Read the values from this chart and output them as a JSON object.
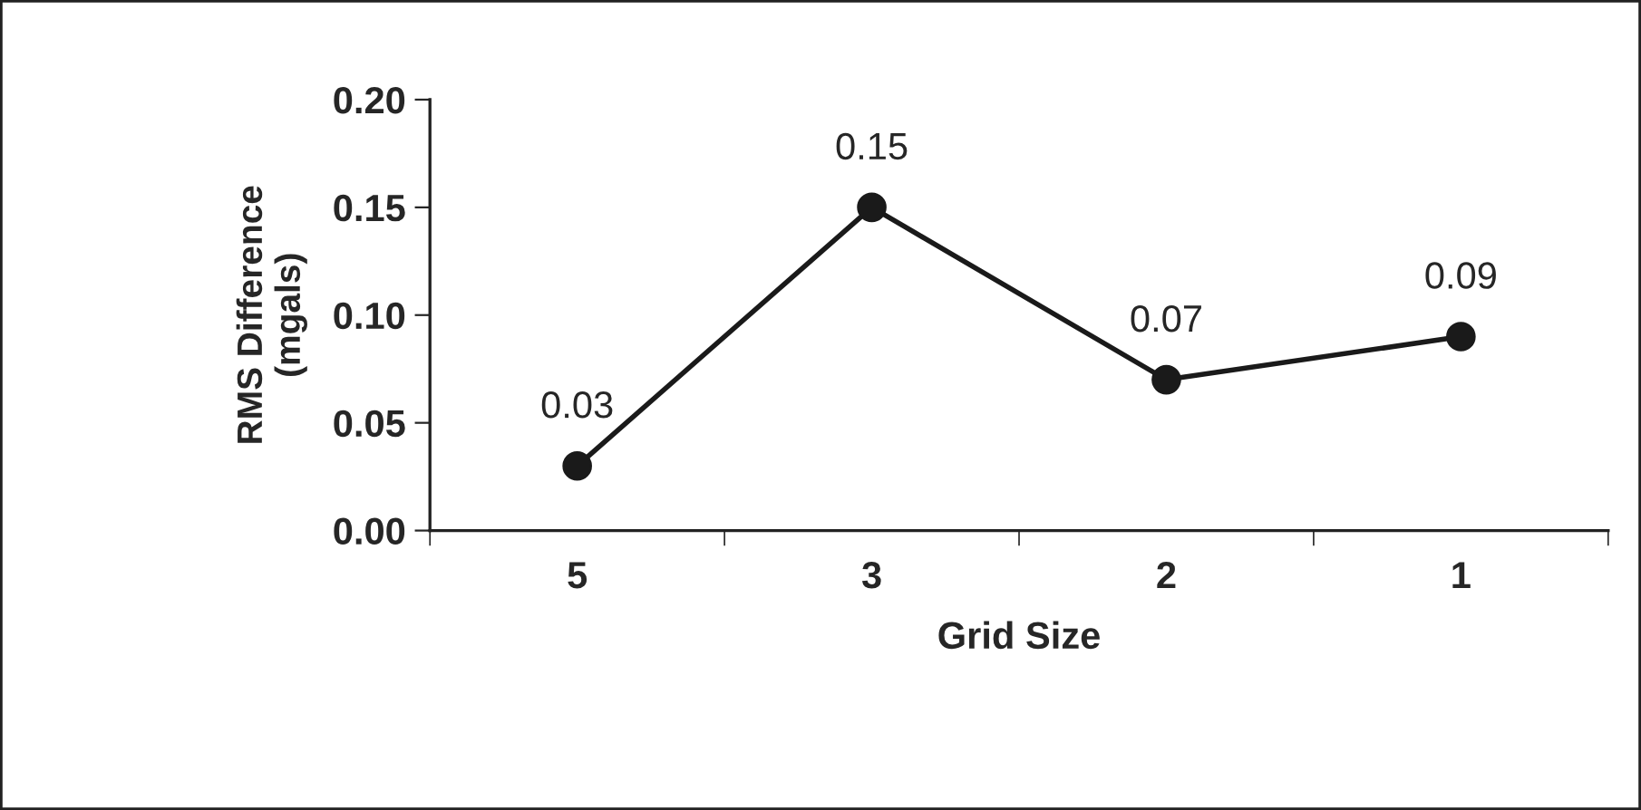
{
  "chart_data": {
    "type": "line",
    "xlabel": "Grid Size",
    "ylabel": "RMS Difference\n(mgals)",
    "categories": [
      "5",
      "3",
      "2",
      "1"
    ],
    "series": [
      {
        "color": "#1a1a1a",
        "values": [
          0.03,
          0.15,
          0.07,
          0.09
        ]
      }
    ],
    "data_labels": true,
    "marker": "circle",
    "line_style": "solid",
    "grid": false,
    "legend": false,
    "ylim": [
      0,
      0.2
    ],
    "yticks": [
      {
        "value": 0,
        "label": "0.00"
      },
      {
        "value": 0.05,
        "label": "0.05"
      },
      {
        "value": 0.1,
        "label": "0.10"
      },
      {
        "value": 0.15,
        "label": "0.15"
      },
      {
        "value": 0.2,
        "label": "0.20"
      }
    ]
  }
}
